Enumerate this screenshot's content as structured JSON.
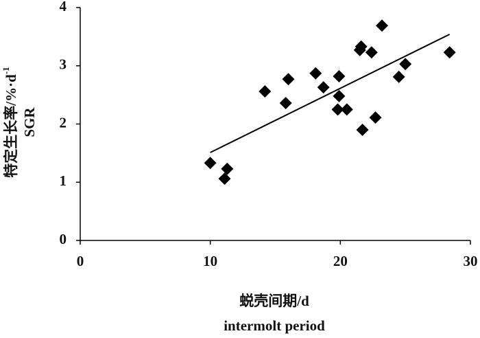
{
  "chart_data": {
    "type": "scatter",
    "x_label": "蜕壳间期/d",
    "x_label_en": "intermolt period",
    "y_label": "特定生长率/%·d",
    "y_label_sup": "-1",
    "y_label_en": "SGR",
    "series": [
      {
        "color": "#000000",
        "x": [
          10.0,
          11.3,
          11.1,
          14.2,
          15.8,
          16.0,
          18.1,
          18.7,
          19.9,
          19.9,
          19.8,
          20.5,
          21.5,
          21.6,
          21.7,
          22.4,
          22.7,
          23.2,
          24.5,
          25.0,
          28.4
        ],
        "values": [
          1.33,
          1.23,
          1.06,
          2.56,
          2.36,
          2.77,
          2.87,
          2.63,
          2.82,
          2.48,
          2.25,
          2.25,
          3.27,
          3.33,
          1.9,
          3.23,
          2.11,
          3.69,
          2.81,
          3.03,
          3.23
        ]
      }
    ],
    "trendline": {
      "x": [
        10,
        28.4
      ],
      "values": [
        1.51,
        3.54
      ]
    },
    "xlim": [
      0,
      30
    ],
    "xticks": [
      0,
      10,
      20,
      30
    ],
    "ylim": [
      0,
      4
    ],
    "yticks": [
      0,
      1,
      2,
      3,
      4
    ]
  }
}
